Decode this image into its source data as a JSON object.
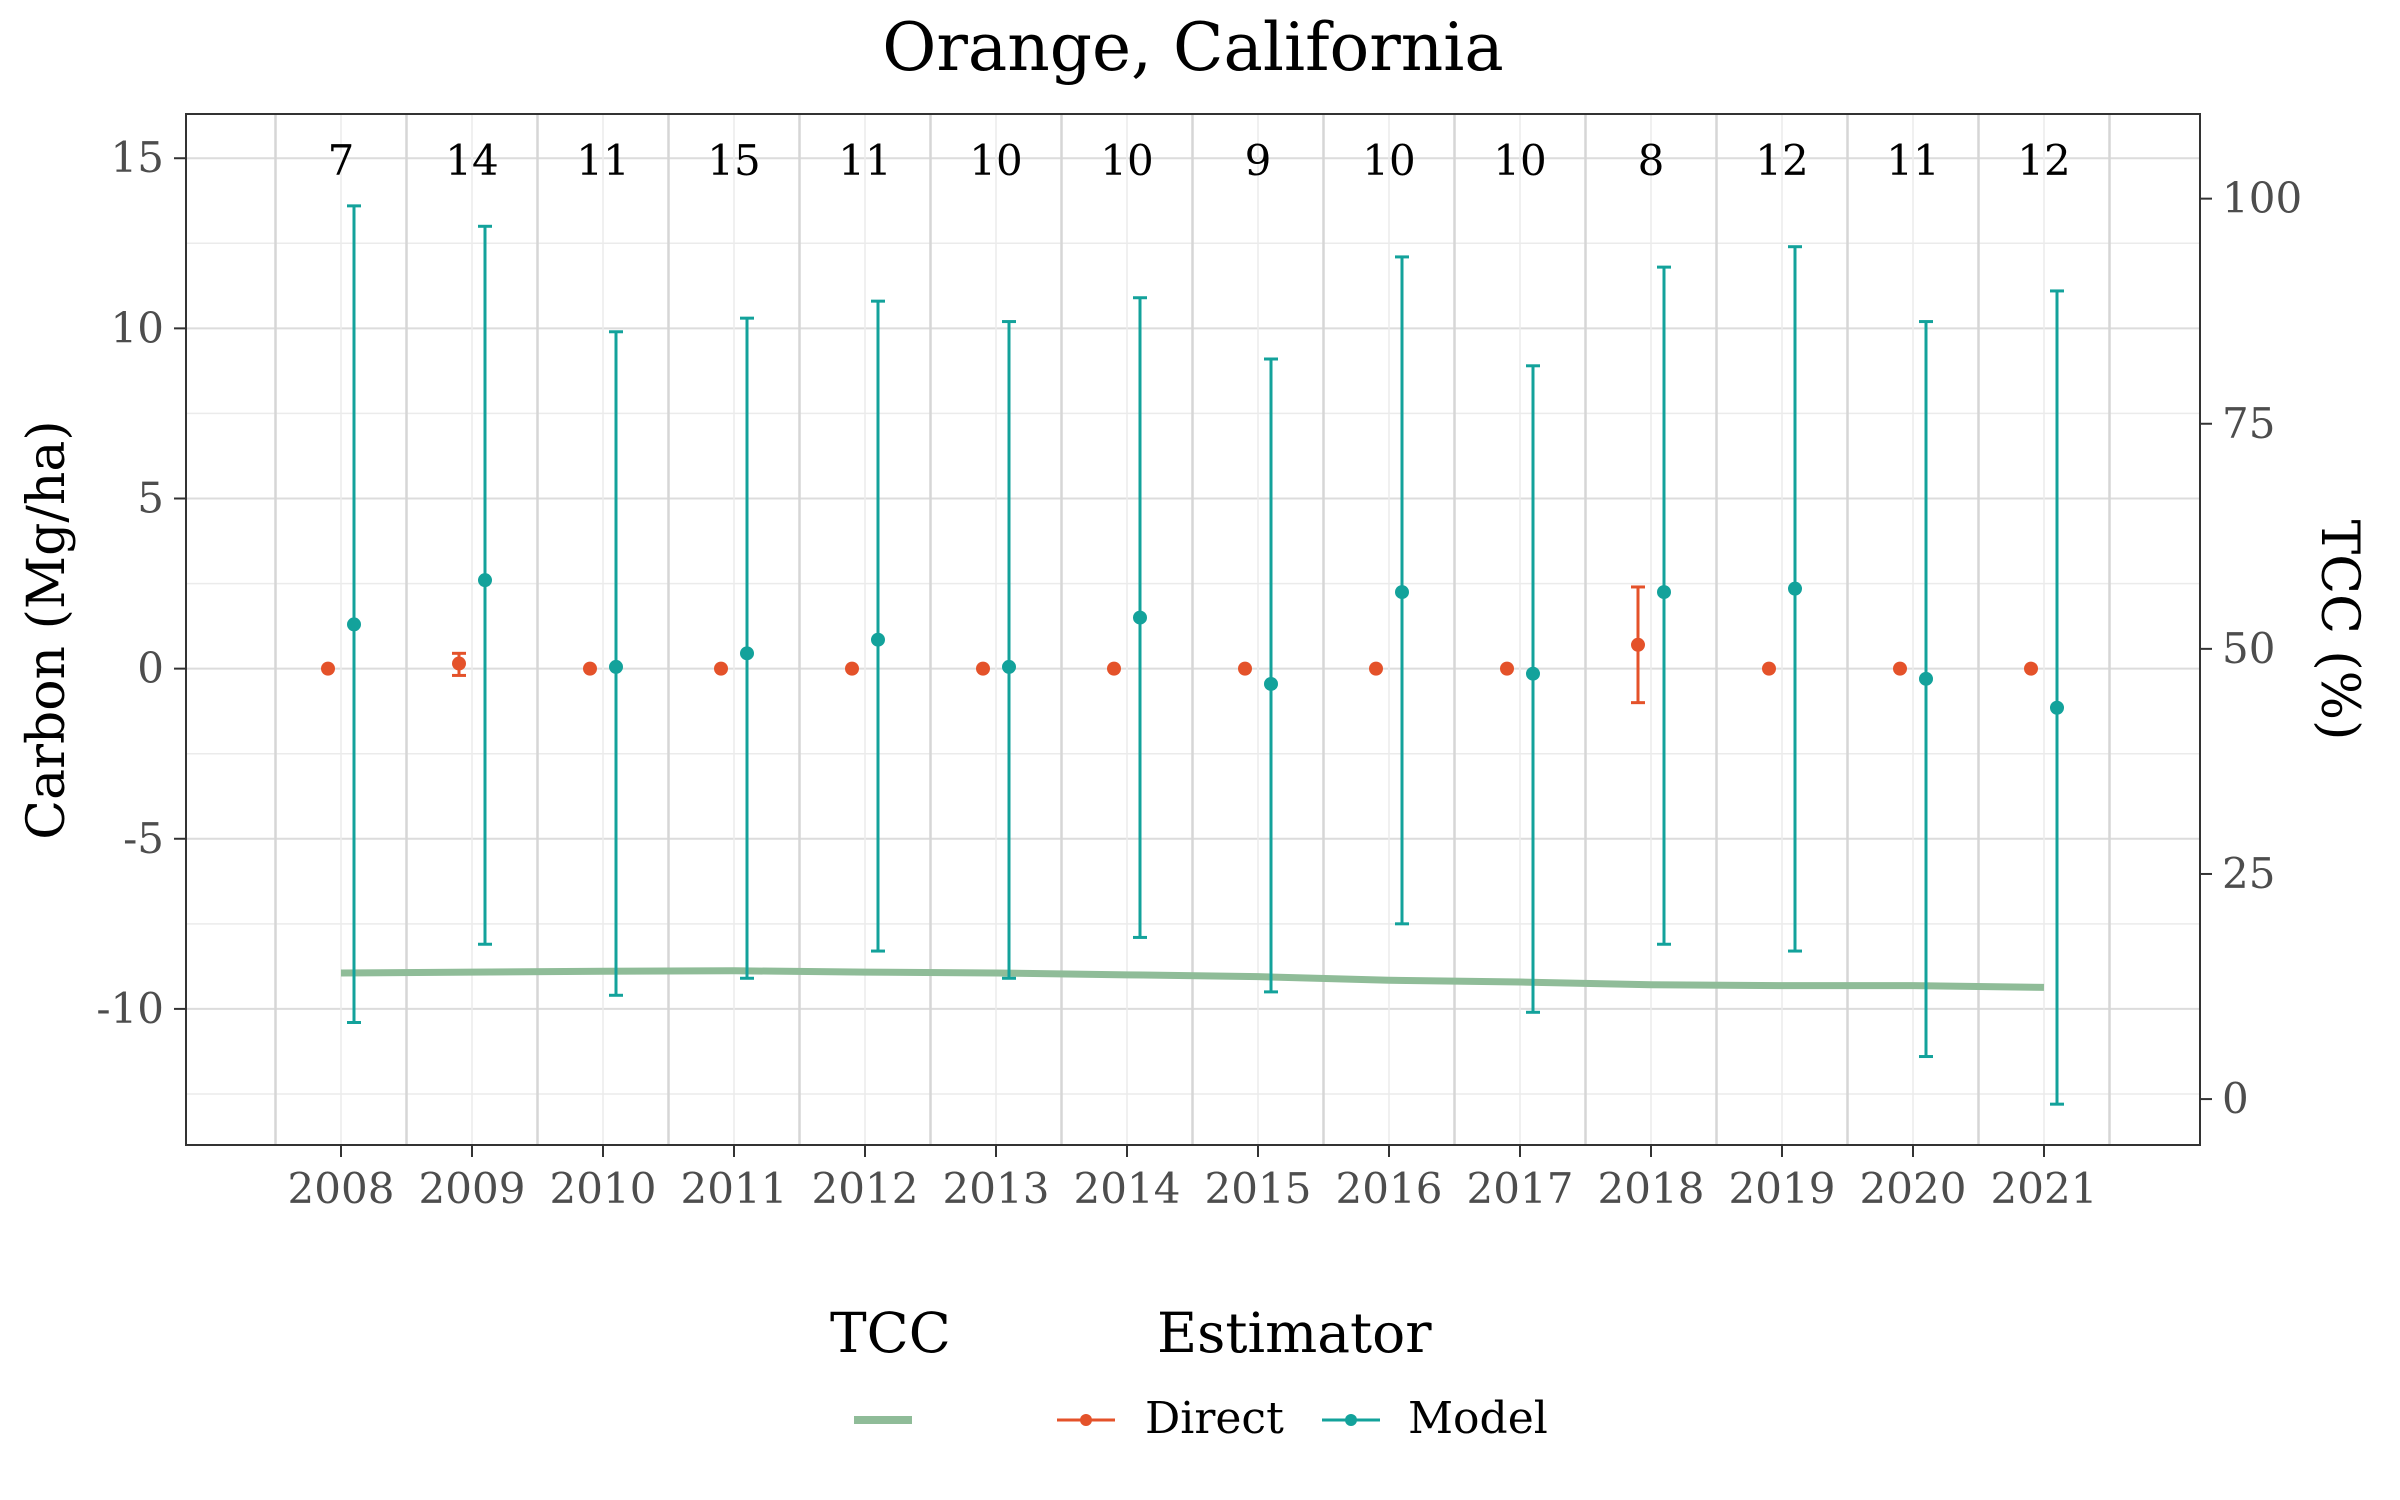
{
  "chart_data": {
    "type": "scatter",
    "title": "Orange, California",
    "xlabel": "",
    "ylabel": "Carbon (Mg/ha)",
    "y2label": "TCC (%)",
    "categories": [
      "2008",
      "2009",
      "2010",
      "2011",
      "2012",
      "2013",
      "2014",
      "2015",
      "2016",
      "2017",
      "2018",
      "2019",
      "2020",
      "2021"
    ],
    "ylim": [
      -14,
      16.3
    ],
    "y2lim": [
      -5.1,
      109.4
    ],
    "yticks": [
      -10,
      -5,
      0,
      5,
      10,
      15
    ],
    "yticks_labels": [
      "-10",
      "-5",
      "0",
      "5",
      "10",
      "15"
    ],
    "y2ticks": [
      0,
      25,
      50,
      75,
      100
    ],
    "y2ticks_labels": [
      "0",
      "25",
      "50",
      "75",
      "100"
    ],
    "grid": true,
    "counts": [
      "7",
      "14",
      "11",
      "15",
      "11",
      "10",
      "10",
      "9",
      "10",
      "10",
      "8",
      "12",
      "11",
      "12"
    ],
    "series": [
      {
        "name": "Direct",
        "color": "#E4522A",
        "values": [
          0,
          0.15,
          0,
          0,
          0,
          0,
          0,
          0,
          0,
          0,
          0.7,
          0,
          0,
          0
        ],
        "lower": [
          0,
          -0.2,
          0,
          0,
          0,
          0,
          0,
          0,
          0,
          0,
          -1.0,
          0,
          0,
          0
        ],
        "upper": [
          0,
          0.45,
          0,
          0,
          0,
          0,
          0,
          0,
          0,
          0,
          2.4,
          0,
          0,
          0
        ]
      },
      {
        "name": "Model",
        "color": "#13A29B",
        "values": [
          1.3,
          2.6,
          0.05,
          0.45,
          0.85,
          0.05,
          1.5,
          -0.45,
          2.25,
          -0.15,
          2.25,
          2.35,
          -0.3,
          -1.15
        ],
        "lower": [
          -10.4,
          -8.1,
          -9.6,
          -9.1,
          -8.3,
          -9.1,
          -7.9,
          -9.5,
          -7.5,
          -10.1,
          -8.1,
          -8.3,
          -11.4,
          -12.8
        ],
        "upper": [
          13.6,
          13.0,
          9.9,
          10.3,
          10.8,
          10.2,
          10.9,
          9.1,
          12.1,
          8.9,
          11.8,
          12.4,
          10.2,
          11.1
        ]
      }
    ],
    "tcc_line": {
      "name": "",
      "color": "#8FBC98",
      "values": [
        14.0,
        14.1,
        14.2,
        14.25,
        14.1,
        14.0,
        13.8,
        13.6,
        13.2,
        13.0,
        12.7,
        12.6,
        12.6,
        12.4
      ]
    },
    "legend": {
      "placement": "bottom",
      "tcc_title": "TCC",
      "estimator_title": "Estimator",
      "entries": [
        "Direct",
        "Model"
      ]
    }
  }
}
